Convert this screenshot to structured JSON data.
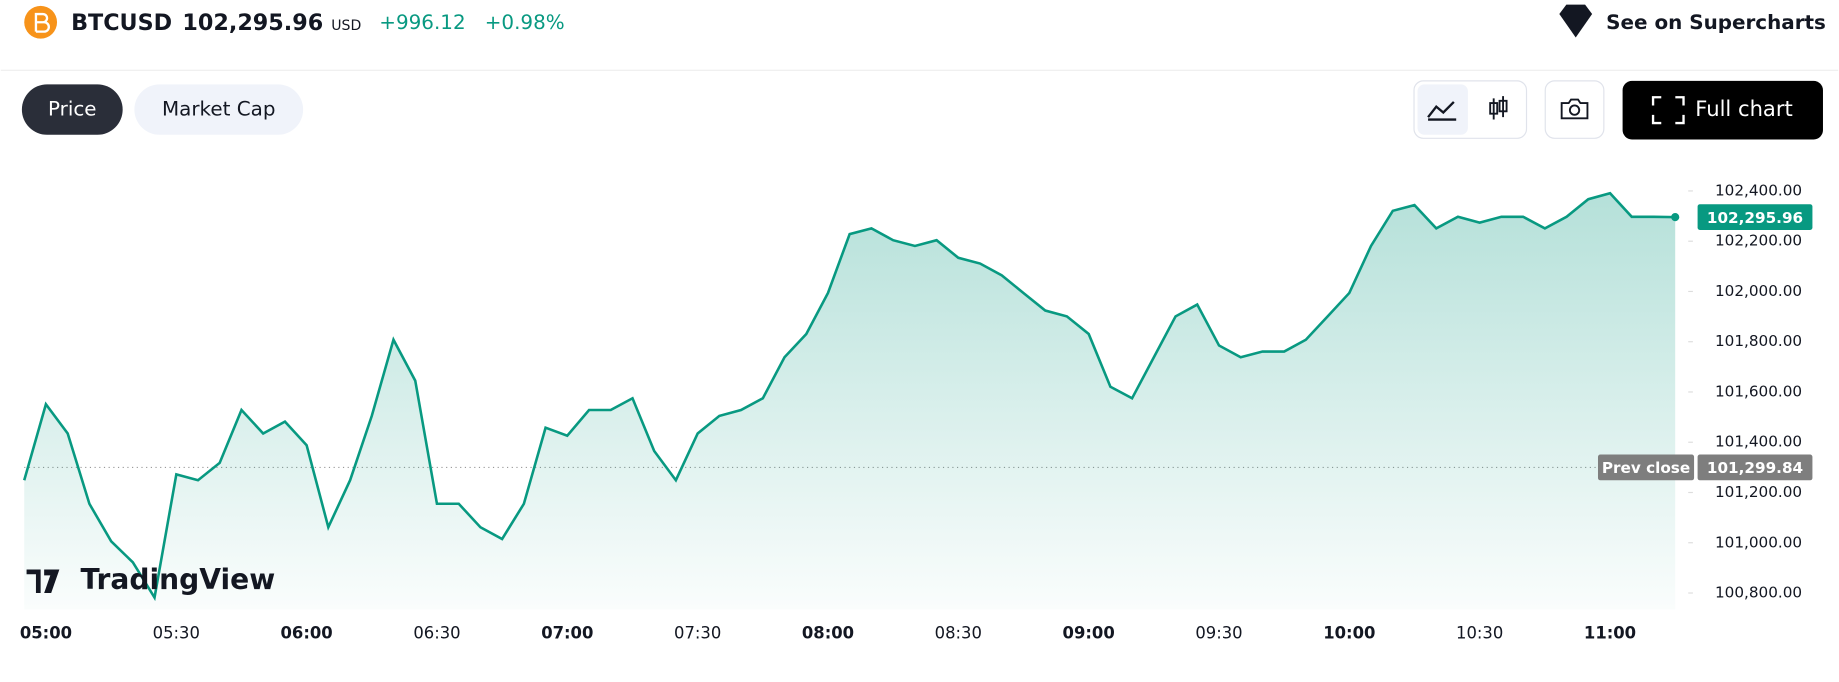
{
  "header": {
    "symbol": "BTCUSD",
    "price": "102,295.96",
    "currency": "USD",
    "change": "+996.12",
    "change_percent": "+0.98%",
    "link": "See on Supercharts"
  },
  "tabs": [
    "Price",
    "Market Cap"
  ],
  "full_chart": "Full chart",
  "watermark": "TradingView",
  "chart_data": {
    "type": "line",
    "color": "#089981",
    "x": [
      "04:55",
      "05:00",
      "05:05",
      "05:10",
      "05:15",
      "05:20",
      "05:25",
      "05:30",
      "05:35",
      "05:40",
      "05:45",
      "05:50",
      "05:55",
      "06:00",
      "06:05",
      "06:10",
      "06:15",
      "06:20",
      "06:25",
      "06:30",
      "06:35",
      "06:40",
      "06:45",
      "06:50",
      "06:55",
      "07:00",
      "07:05",
      "07:10",
      "07:15",
      "07:20",
      "07:25",
      "07:30",
      "07:35",
      "07:40",
      "07:45",
      "07:50",
      "07:55",
      "08:00",
      "08:05",
      "08:10",
      "08:15",
      "08:20",
      "08:25",
      "08:30",
      "08:35",
      "08:40",
      "08:45",
      "08:50",
      "08:55",
      "09:00",
      "09:05",
      "09:10",
      "09:15",
      "09:20",
      "09:25",
      "09:30",
      "09:35",
      "09:40",
      "09:45",
      "09:50",
      "09:55",
      "10:00",
      "10:05",
      "10:10",
      "10:15",
      "10:20",
      "10:25",
      "10:30",
      "10:35",
      "10:40",
      "10:45",
      "10:50",
      "10:55",
      "11:00",
      "11:05",
      "11:10",
      "11:15"
    ],
    "values": [
      101249,
      101551,
      101435,
      101155,
      101006,
      100922,
      100782,
      101272,
      101249,
      101318,
      101528,
      101435,
      101482,
      101388,
      101062,
      101249,
      101505,
      101808,
      101645,
      101155,
      101155,
      101062,
      101015,
      101155,
      101458,
      101426,
      101528,
      101528,
      101575,
      101365,
      101249,
      101435,
      101505,
      101528,
      101575,
      101738,
      101831,
      101994,
      102228,
      102251,
      102204,
      102181,
      102204,
      102134,
      102111,
      102064,
      101994,
      101924,
      101901,
      101831,
      101621,
      101575,
      101738,
      101901,
      101948,
      101785,
      101738,
      101761,
      101761,
      101808,
      101901,
      101994,
      102181,
      102321,
      102344,
      102251,
      102297,
      102274,
      102297,
      102297,
      102251,
      102297,
      102367,
      102391,
      102297,
      102297,
      102295.96
    ],
    "xlim": [
      "04:55",
      "11:18"
    ],
    "xticks": [
      "05:00",
      "05:30",
      "06:00",
      "06:30",
      "07:00",
      "07:30",
      "08:00",
      "08:30",
      "09:00",
      "09:30",
      "10:00",
      "10:30",
      "11:00"
    ],
    "ylim": [
      100735,
      102507
    ],
    "yticks": [
      {
        "value": 100800,
        "label": "100,800.00"
      },
      {
        "value": 101000,
        "label": "101,000.00"
      },
      {
        "value": 101200,
        "label": "101,200.00"
      },
      {
        "value": 101400,
        "label": "101,400.00"
      },
      {
        "value": 101600,
        "label": "101,600.00"
      },
      {
        "value": 101800,
        "label": "101,800.00"
      },
      {
        "value": 102000,
        "label": "102,000.00"
      },
      {
        "value": 102200,
        "label": "102,200.00"
      },
      {
        "value": 102400,
        "label": "102,400.00"
      }
    ],
    "prev_close": {
      "label": "Prev close",
      "value": 101299.84,
      "value_label": "101,299.84"
    }
  }
}
